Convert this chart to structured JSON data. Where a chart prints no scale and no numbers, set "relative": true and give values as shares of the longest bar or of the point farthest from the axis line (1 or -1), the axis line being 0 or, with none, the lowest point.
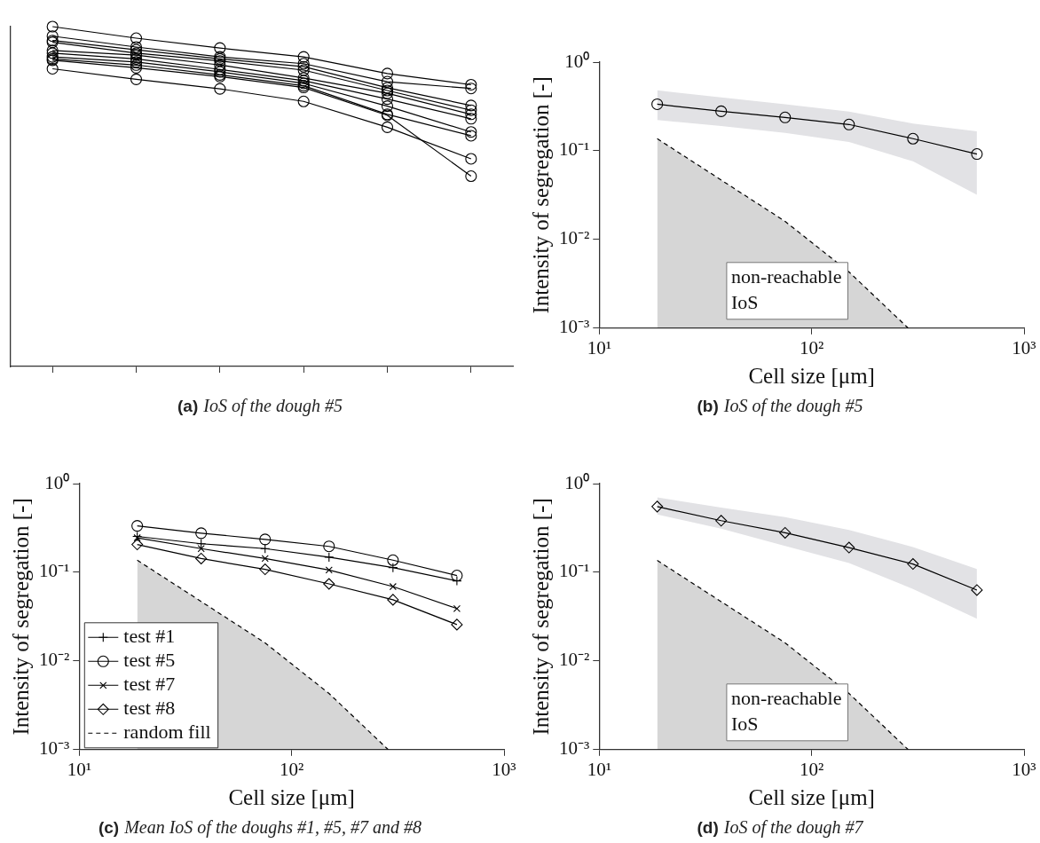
{
  "chart_data": [
    {
      "type": "line",
      "title": "(a) IoS of the dough #5",
      "relative": true,
      "categories": [
        null,
        null,
        null,
        null,
        null,
        null
      ],
      "tick_labels": false,
      "marker": "circle",
      "series": [
        {
          "color": "#000000",
          "values": [
            1,
            0.966,
            0.937,
            0.911,
            0.862,
            0.829
          ]
        },
        {
          "color": "#000000",
          "values": [
            0.972,
            0.94,
            0.911,
            0.891,
            0.838,
            0.818
          ]
        },
        {
          "color": "#000000",
          "values": [
            0.959,
            0.932,
            0.905,
            0.882,
            0.82,
            0.768
          ]
        },
        {
          "color": "#000000",
          "values": [
            0.954,
            0.922,
            0.899,
            0.872,
            0.812,
            0.754
          ]
        },
        {
          "color": "#000000",
          "values": [
            0.93,
            0.916,
            0.887,
            0.849,
            0.804,
            0.742
          ]
        },
        {
          "color": "#000000",
          "values": [
            0.922,
            0.905,
            0.874,
            0.841,
            0.787,
            0.729
          ]
        },
        {
          "color": "#000000",
          "values": [
            0.911,
            0.896,
            0.867,
            0.833,
            0.766,
            0.69
          ]
        },
        {
          "color": "#000000",
          "values": [
            0.905,
            0.887,
            0.858,
            0.826,
            0.742,
            0.679
          ]
        },
        {
          "color": "#000000",
          "values": [
            0.901,
            0.879,
            0.853,
            0.821,
            0.739,
            0.56
          ]
        },
        {
          "color": "#000000",
          "values": [
            0.876,
            0.845,
            0.817,
            0.78,
            0.704,
            0.611
          ]
        }
      ]
    },
    {
      "type": "line",
      "title": "(b) IoS of the dough #5",
      "xlabel": "Cell size [μm]",
      "ylabel": "Intensity of segregation [-]",
      "x": [
        18.75,
        37.5,
        75,
        150,
        300,
        600
      ],
      "log": "xy",
      "xlim": [
        10,
        1000
      ],
      "ylim": [
        0.001,
        1
      ],
      "xticks": [
        {
          "value": 10,
          "label": "10¹"
        },
        {
          "value": 100,
          "label": "10²"
        },
        {
          "value": 1000,
          "label": "10³"
        }
      ],
      "yticks": [
        {
          "value": 0.001,
          "label": "10⁻³"
        },
        {
          "value": 0.01,
          "label": "10⁻²"
        },
        {
          "value": 0.1,
          "label": "10⁻¹"
        },
        {
          "value": 1,
          "label": "10⁰"
        }
      ],
      "annotations": [
        "non-reachable IoS"
      ],
      "series": [
        {
          "color": "#000000",
          "marker": "circle",
          "values": [
            0.335,
            0.279,
            0.238,
            0.198,
            0.137,
            0.092
          ],
          "lower": [
            0.222,
            0.19,
            0.159,
            0.126,
            0.076,
            0.032
          ],
          "upper": [
            0.48,
            0.4,
            0.335,
            0.276,
            0.203,
            0.166
          ]
        },
        {
          "type": "area",
          "color": "#000000",
          "line_style": "dashed",
          "marker": "none",
          "x": [
            18.75,
            75,
            150,
            285
          ],
          "values": [
            0.137,
            0.016,
            0.0043,
            0.001
          ]
        }
      ]
    },
    {
      "type": "line",
      "title": "(c) Mean IoS of the doughs #1, #5, #7 and #8",
      "xlabel": "Cell size [μm]",
      "ylabel": "Intensity of segregation [-]",
      "x": [
        18.75,
        37.5,
        75,
        150,
        300,
        600
      ],
      "log": "xy",
      "xlim": [
        10,
        1000
      ],
      "ylim": [
        0.001,
        1
      ],
      "xticks": [
        {
          "value": 10,
          "label": "10¹"
        },
        {
          "value": 100,
          "label": "10²"
        },
        {
          "value": 1000,
          "label": "10³"
        }
      ],
      "yticks": [
        {
          "value": 0.001,
          "label": "10⁻³"
        },
        {
          "value": 0.01,
          "label": "10⁻²"
        },
        {
          "value": 0.1,
          "label": "10⁻¹"
        },
        {
          "value": 1,
          "label": "10⁰"
        }
      ],
      "legend": "bottom left",
      "series": [
        {
          "name": "test #1",
          "color": "#000000",
          "marker": "plus",
          "values": [
            0.254,
            0.21,
            0.185,
            0.148,
            0.113,
            0.08
          ]
        },
        {
          "name": "test #5",
          "color": "#000000",
          "marker": "circle",
          "values": [
            0.334,
            0.276,
            0.235,
            0.196,
            0.137,
            0.092
          ]
        },
        {
          "name": "test #7",
          "color": "#000000",
          "marker": "cross",
          "values": [
            0.245,
            0.185,
            0.143,
            0.106,
            0.069,
            0.039
          ]
        },
        {
          "name": "test #8",
          "color": "#000000",
          "marker": "diamond",
          "values": [
            0.206,
            0.143,
            0.108,
            0.074,
            0.049,
            0.0257
          ]
        },
        {
          "name": "random fill",
          "type": "area",
          "color": "#000000",
          "line_style": "dashed",
          "marker": "none",
          "x": [
            18.75,
            75,
            150,
            285
          ],
          "values": [
            0.137,
            0.016,
            0.0043,
            0.001
          ]
        }
      ]
    },
    {
      "type": "line",
      "title": "(d) IoS of the dough #7",
      "xlabel": "Cell size [μm]",
      "ylabel": "Intensity of segregation [-]",
      "x": [
        18.75,
        37.5,
        75,
        150,
        300,
        600
      ],
      "log": "xy",
      "xlim": [
        10,
        1000
      ],
      "ylim": [
        0.001,
        1
      ],
      "xticks": [
        {
          "value": 10,
          "label": "10¹"
        },
        {
          "value": 100,
          "label": "10²"
        },
        {
          "value": 1000,
          "label": "10³"
        }
      ],
      "yticks": [
        {
          "value": 0.001,
          "label": "10⁻³"
        },
        {
          "value": 0.01,
          "label": "10⁻²"
        },
        {
          "value": 0.1,
          "label": "10⁻¹"
        },
        {
          "value": 1,
          "label": "10⁰"
        }
      ],
      "annotations": [
        "non-reachable IoS"
      ],
      "series": [
        {
          "color": "#000000",
          "marker": "diamond",
          "values": [
            0.551,
            0.382,
            0.279,
            0.19,
            0.124,
            0.063
          ],
          "lower": [
            0.45,
            0.31,
            0.198,
            0.127,
            0.065,
            0.03
          ],
          "upper": [
            0.7,
            0.537,
            0.42,
            0.3,
            0.193,
            0.109
          ]
        },
        {
          "type": "area",
          "color": "#000000",
          "line_style": "dashed",
          "marker": "none",
          "x": [
            18.75,
            75,
            150,
            285
          ],
          "values": [
            0.136,
            0.016,
            0.0043,
            0.001
          ]
        }
      ]
    }
  ]
}
